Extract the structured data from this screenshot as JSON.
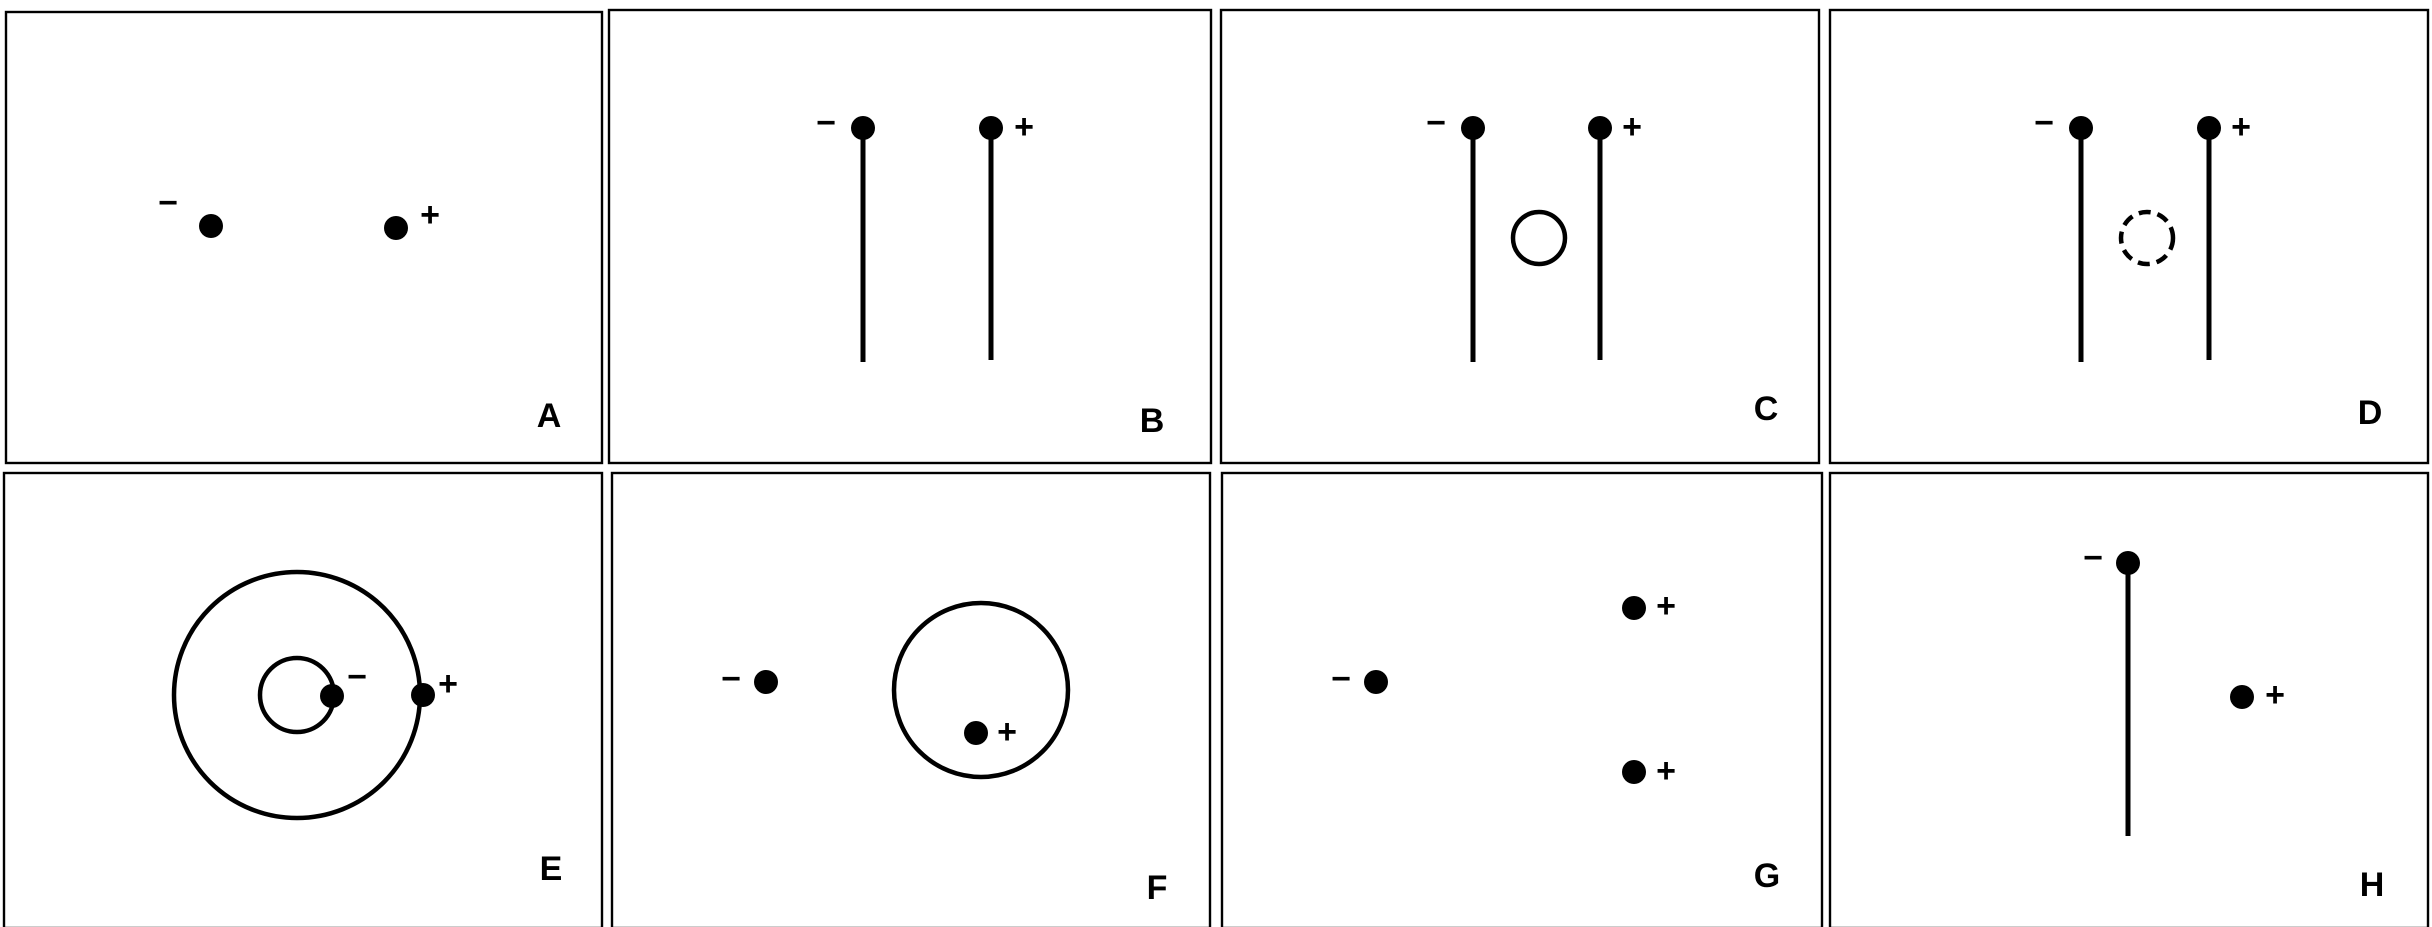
{
  "colors": {
    "ink": "#000000",
    "background": "#ffffff"
  },
  "signs": {
    "negative": "−",
    "positive": "+"
  },
  "panels": [
    {
      "label": "A"
    },
    {
      "label": "B"
    },
    {
      "label": "C"
    },
    {
      "label": "D"
    },
    {
      "label": "E"
    },
    {
      "label": "F"
    },
    {
      "label": "G"
    },
    {
      "label": "H"
    }
  ]
}
